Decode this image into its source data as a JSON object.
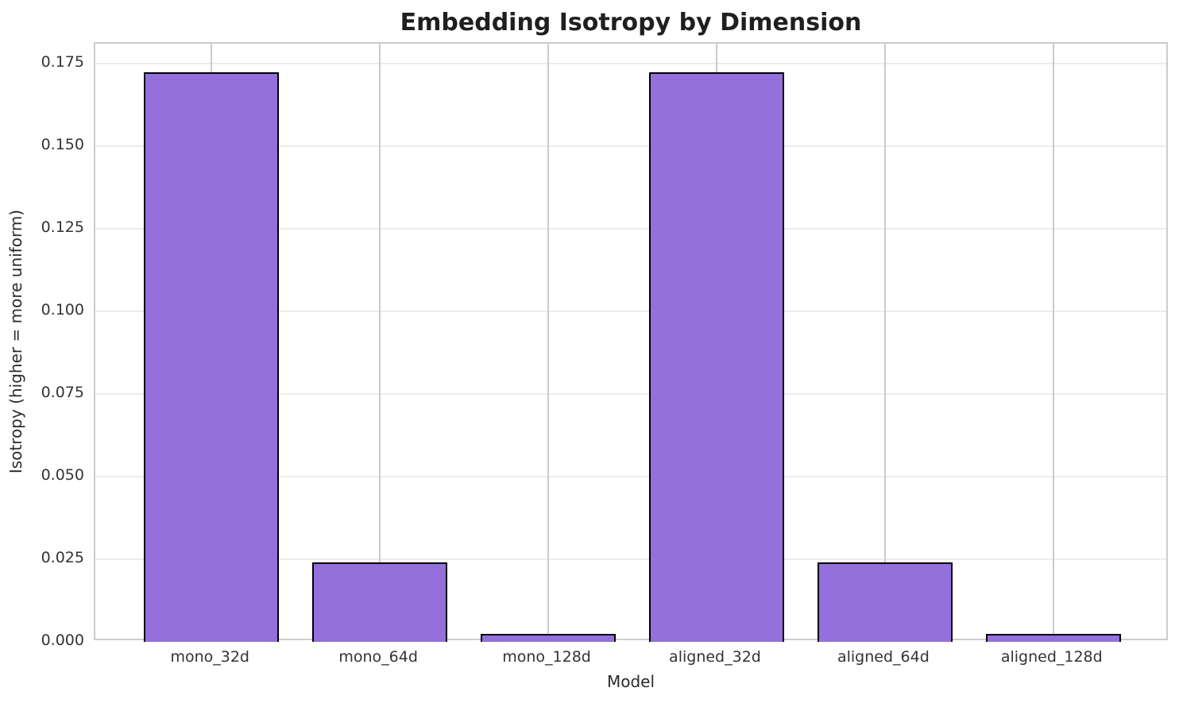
{
  "chart_data": {
    "type": "bar",
    "title": "Embedding Isotropy by Dimension",
    "xlabel": "Model",
    "ylabel": "Isotropy (higher = more uniform)",
    "categories": [
      "mono_32d",
      "mono_64d",
      "mono_128d",
      "aligned_32d",
      "aligned_64d",
      "aligned_128d"
    ],
    "values": [
      0.1725,
      0.024,
      0.0023,
      0.1725,
      0.024,
      0.0023
    ],
    "yticks": [
      0.0,
      0.025,
      0.05,
      0.075,
      0.1,
      0.125,
      0.15,
      0.175
    ],
    "ytick_labels": [
      "0.000",
      "0.025",
      "0.050",
      "0.075",
      "0.100",
      "0.125",
      "0.150",
      "0.175"
    ],
    "ylim": [
      0,
      0.18113
    ],
    "xlim": [
      -0.69,
      5.69
    ],
    "bar_width": 0.8,
    "grid": "both",
    "legend": "none",
    "colors": {
      "bar_fill": "#9370DB",
      "bar_edge": "#000000",
      "grid_vertical": "#cbcbcb",
      "grid_horizontal": "#ececec",
      "spine": "#cccccc",
      "text": "#262626",
      "background": "#ffffff"
    }
  }
}
